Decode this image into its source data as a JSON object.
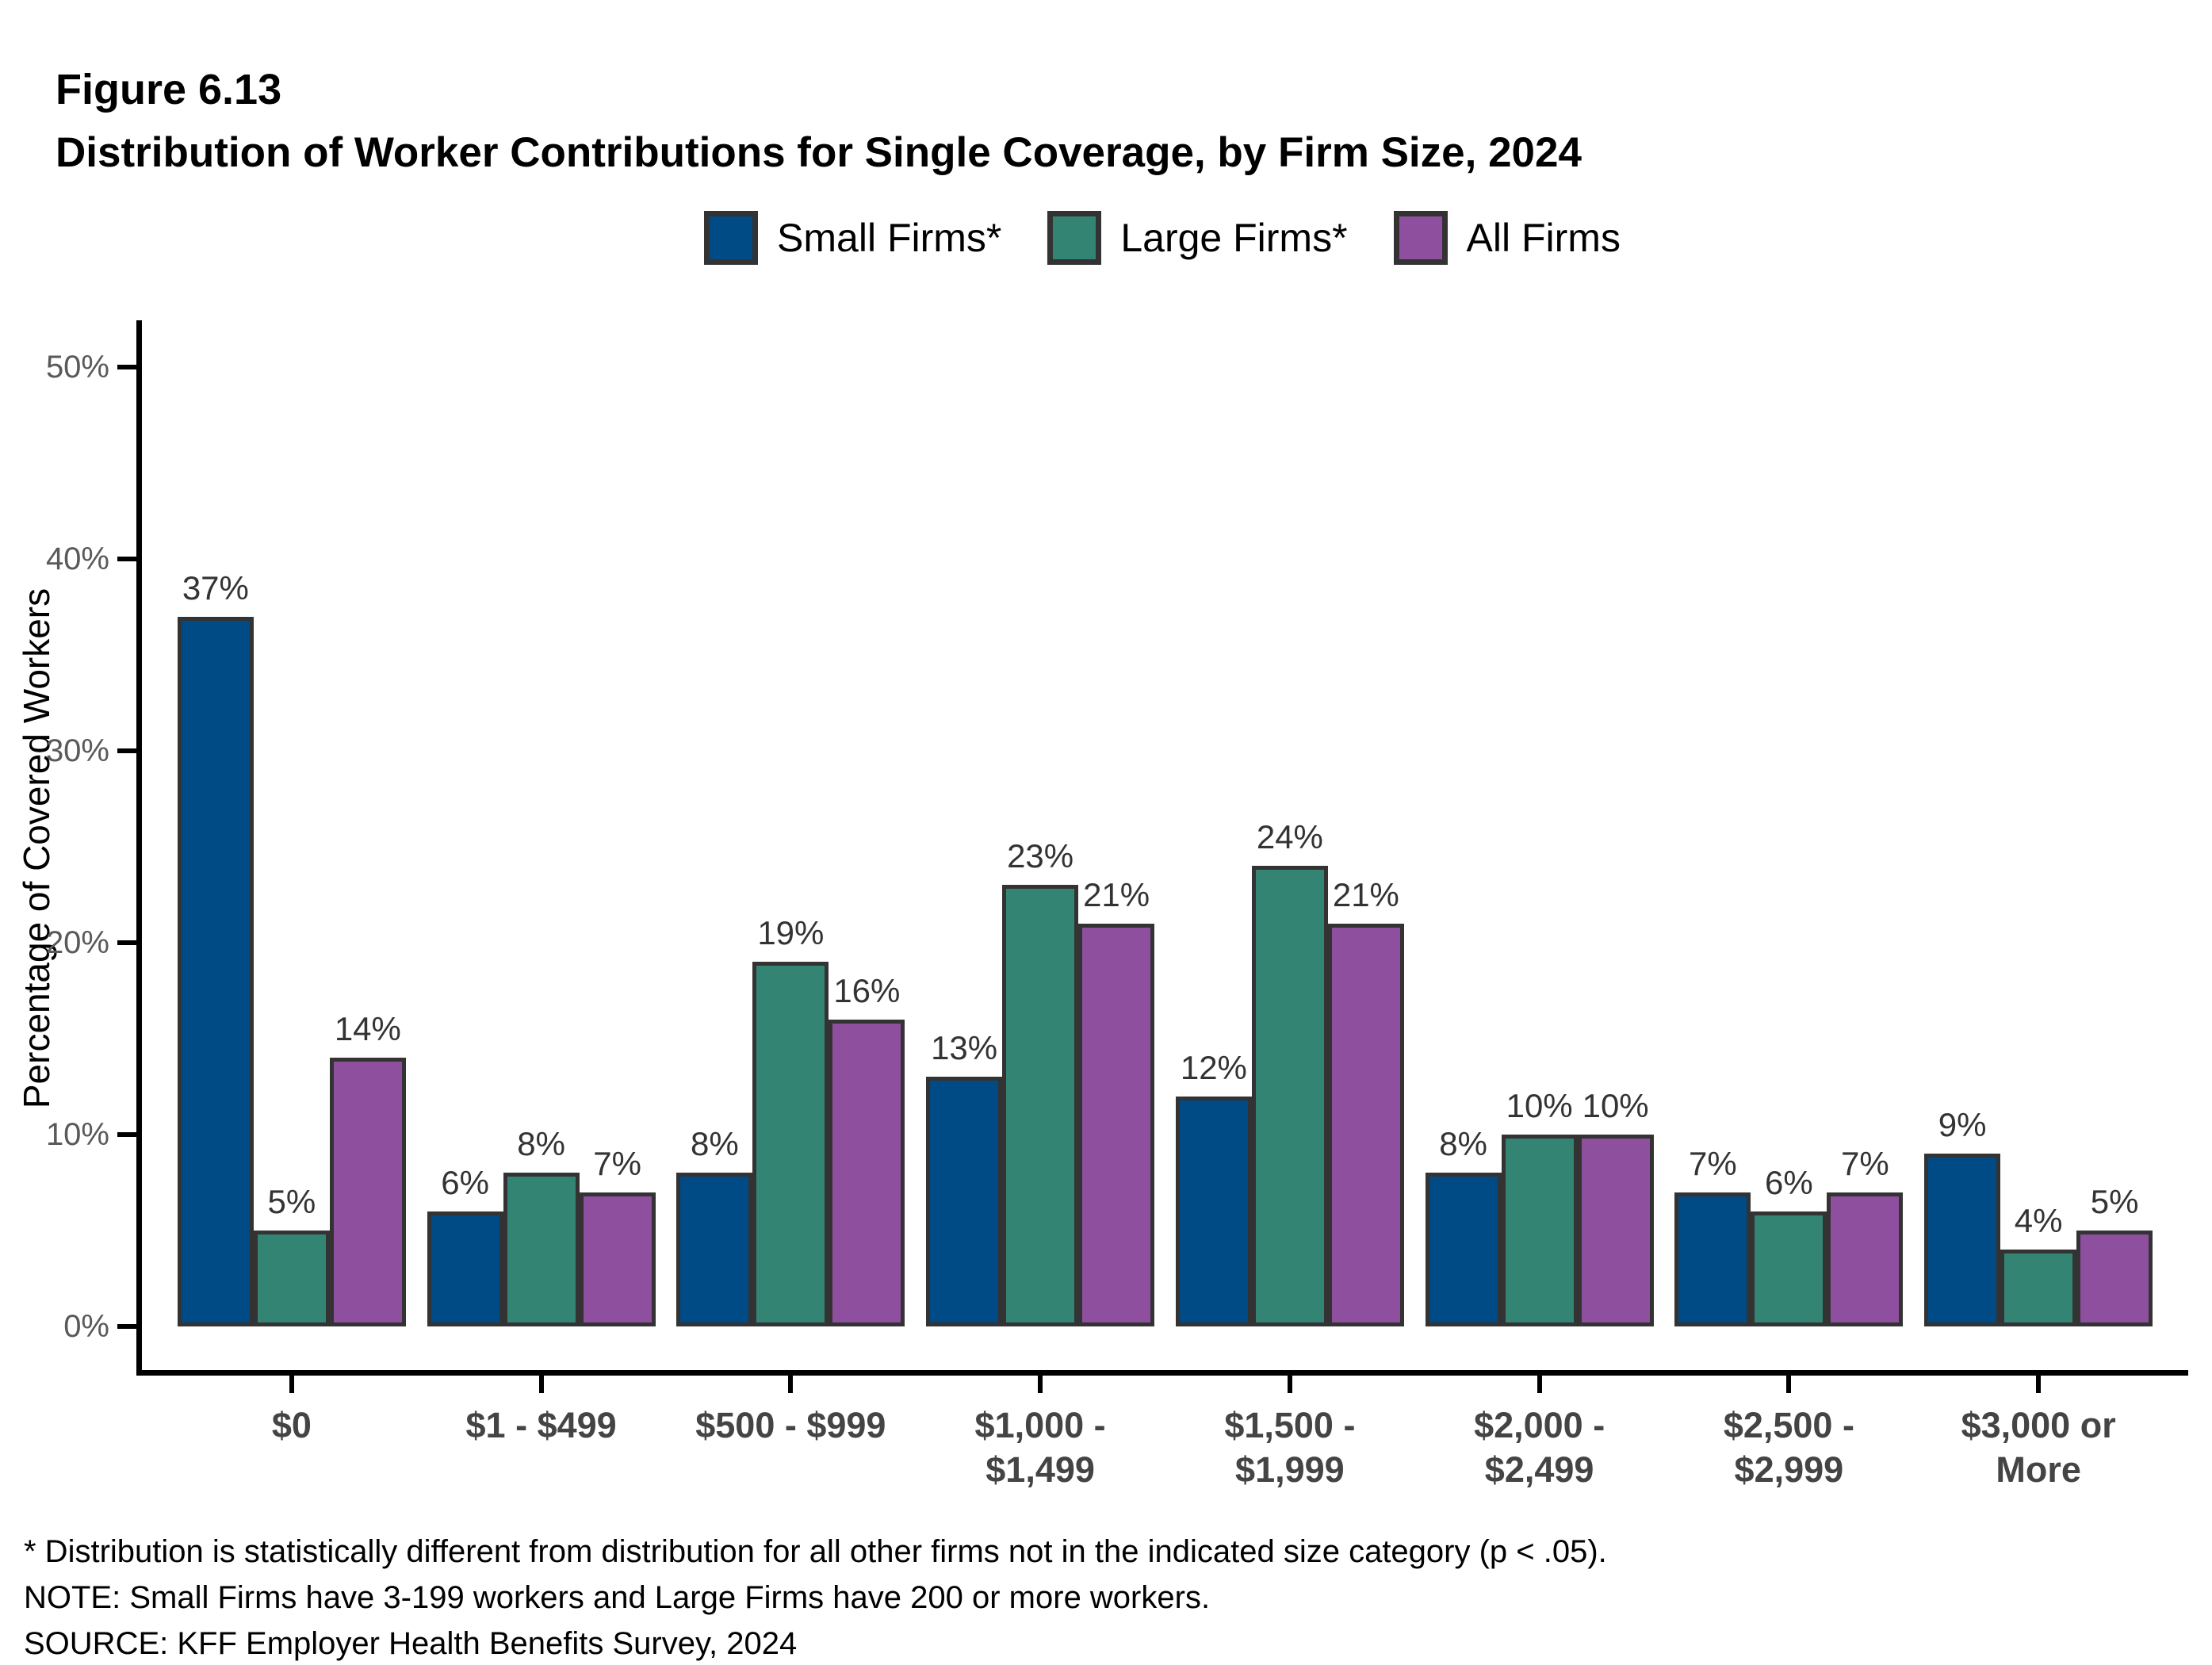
{
  "figure": {
    "label": "Figure 6.13",
    "title": "Distribution of Worker Contributions for Single Coverage, by Firm Size, 2024"
  },
  "chart_data": {
    "type": "bar",
    "title": "Distribution of Worker Contributions for Single Coverage, by Firm Size, 2024",
    "categories": [
      "$0",
      "$1 - $499",
      "$500 - $999",
      "$1,000 - $1,499",
      "$1,500 - $1,999",
      "$2,000 - $2,499",
      "$2,500 - $2,999",
      "$3,000 or More"
    ],
    "category_tick_lines": [
      [
        "$0"
      ],
      [
        "$1 - $499"
      ],
      [
        "$500 - $999"
      ],
      [
        "$1,000 -",
        "$1,499"
      ],
      [
        "$1,500 -",
        "$1,999"
      ],
      [
        "$2,000 -",
        "$2,499"
      ],
      [
        "$2,500 -",
        "$2,999"
      ],
      [
        "$3,000 or",
        "More"
      ]
    ],
    "series": [
      {
        "name": "Small Firms*",
        "color": "#004A86",
        "values": [
          37,
          6,
          8,
          13,
          12,
          8,
          7,
          9
        ]
      },
      {
        "name": "Large Firms*",
        "color": "#348474",
        "values": [
          5,
          8,
          19,
          23,
          24,
          10,
          6,
          4
        ]
      },
      {
        "name": "All Firms",
        "color": "#8F4F9F",
        "values": [
          14,
          7,
          16,
          21,
          21,
          10,
          7,
          5
        ]
      }
    ],
    "ylabel": "Percentage of Covered Workers",
    "xlabel": "",
    "ylim": [
      0,
      50
    ],
    "yticks": [
      0,
      10,
      20,
      30,
      40,
      50
    ],
    "ytick_suffix": "%",
    "value_label_suffix": "%",
    "grid": false,
    "legend_position": "top",
    "bar_border_color": "#333333",
    "axis_color": "#000000",
    "ytick_label_color": "#595959",
    "xtick_label_color": "#444444",
    "value_label_color": "#333333"
  },
  "footnotes": [
    "* Distribution is statistically different from distribution for all other firms not in the indicated size category (p < .05).",
    "NOTE: Small Firms have 3-199 workers and Large Firms have 200 or more workers.",
    "SOURCE: KFF Employer Health Benefits Survey, 2024"
  ]
}
